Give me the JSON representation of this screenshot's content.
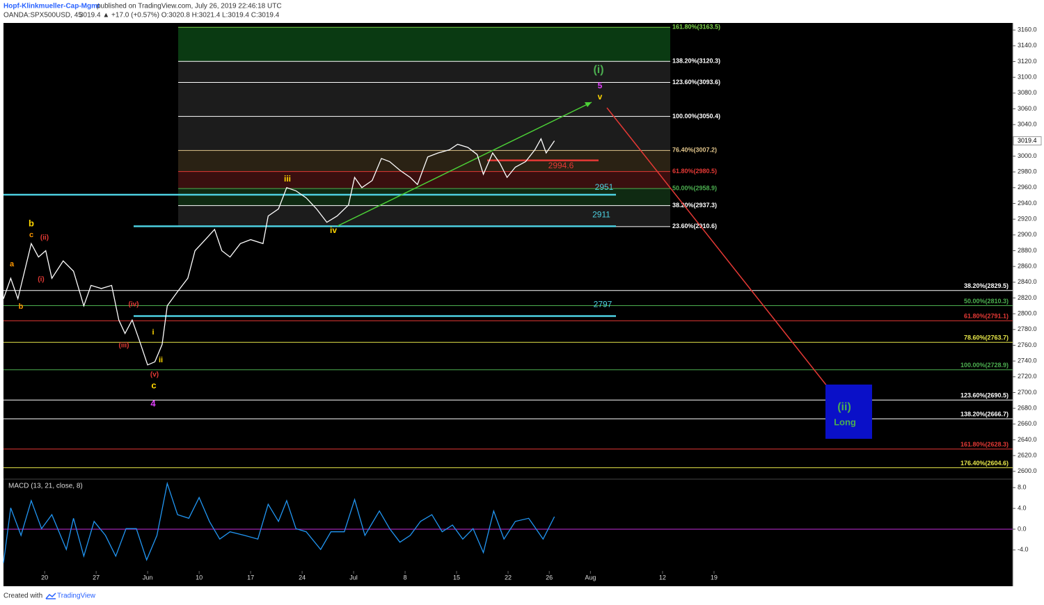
{
  "header": {
    "author": "Hopf-Klinkmueller-Cap-Mgmt",
    "published": "published on TradingView.com, July 26, 2019 22:46:18 UTC",
    "symbol": "OANDA:SPX500USD, 45",
    "quote": "3019.4 ▲ +17.0 (+0.57%) O:3020.8 H:3021.4 L:3019.4 C:3019.4"
  },
  "footer": {
    "created": "Created with",
    "brand": "TradingView"
  },
  "chart_data": [
    {
      "type": "line",
      "x": [
        1.0,
        1.7,
        2.4,
        3.7,
        4.4,
        5.1,
        5.7,
        6.8,
        7.8,
        8.8,
        9.5,
        10.5,
        11.5,
        12.2,
        12.8,
        13.5,
        14.2,
        15.0,
        15.7,
        16.4,
        16.9,
        17.9,
        18.9,
        19.6,
        20.6,
        21.5,
        22.2,
        23.0,
        24.0,
        25.0,
        26.2,
        26.7,
        27.7,
        28.5,
        29.4,
        30.4,
        31.4,
        32.4,
        33.4,
        34.5,
        35.1,
        35.8,
        36.8,
        37.7,
        38.5,
        39.5,
        40.5,
        41.2,
        42.2,
        43.2,
        44.3,
        45.1,
        46.1,
        47.0,
        47.6,
        48.5,
        49.2,
        49.9,
        50.7,
        51.7,
        52.6,
        53.2,
        53.7,
        54.5
      ],
      "series": [
        {
          "color": "#ffffff",
          "values": [
            2819,
            2845,
            2819,
            2889,
            2872,
            2880,
            2845,
            2867,
            2854,
            2810,
            2836,
            2832,
            2836,
            2792,
            2775,
            2792,
            2766,
            2735,
            2739,
            2761,
            2810,
            2828,
            2845,
            2880,
            2894,
            2907,
            2880,
            2872,
            2889,
            2894,
            2889,
            2924,
            2933,
            2960,
            2956,
            2947,
            2933,
            2916,
            2924,
            2938,
            2973,
            2960,
            2969,
            2997,
            2993,
            2982,
            2973,
            2964,
            2999,
            3004,
            3008,
            3015,
            3011,
            3002,
            2977,
            3004,
            2991,
            2973,
            2986,
            2993,
            3008,
            3022,
            3004,
            3019.4
          ]
        }
      ],
      "xlim": [
        1,
        99
      ],
      "xticks": [
        {
          "value": 5,
          "label": "20"
        },
        {
          "value": 10,
          "label": "27"
        },
        {
          "value": 15,
          "label": "Jun"
        },
        {
          "value": 20,
          "label": "10"
        },
        {
          "value": 25,
          "label": "17"
        },
        {
          "value": 30,
          "label": "24"
        },
        {
          "value": 35,
          "label": "Jul"
        },
        {
          "value": 40,
          "label": "8"
        },
        {
          "value": 45,
          "label": "15"
        },
        {
          "value": 50,
          "label": "22"
        },
        {
          "value": 54,
          "label": "26"
        },
        {
          "value": 58,
          "label": "Aug"
        },
        {
          "value": 65,
          "label": "12"
        },
        {
          "value": 70,
          "label": "19"
        }
      ],
      "ylim": [
        2591,
        3169
      ],
      "yticks": [
        {
          "value": 2600,
          "label": "2600.0"
        },
        {
          "value": 2620,
          "label": "2620.0"
        },
        {
          "value": 2640,
          "label": "2640.0"
        },
        {
          "value": 2660,
          "label": "2660.0"
        },
        {
          "value": 2680,
          "label": "2680.0"
        },
        {
          "value": 2700,
          "label": "2700.0"
        },
        {
          "value": 2720,
          "label": "2720.0"
        },
        {
          "value": 2740,
          "label": "2740.0"
        },
        {
          "value": 2760,
          "label": "2760.0"
        },
        {
          "value": 2780,
          "label": "2780.0"
        },
        {
          "value": 2800,
          "label": "2800.0"
        },
        {
          "value": 2820,
          "label": "2820.0"
        },
        {
          "value": 2840,
          "label": "2840.0"
        },
        {
          "value": 2860,
          "label": "2860.0"
        },
        {
          "value": 2880,
          "label": "2880.0"
        },
        {
          "value": 2900,
          "label": "2900.0"
        },
        {
          "value": 2920,
          "label": "2920.0"
        },
        {
          "value": 2940,
          "label": "2940.0"
        },
        {
          "value": 2960,
          "label": "2960.0"
        },
        {
          "value": 2980,
          "label": "2980.0"
        },
        {
          "value": 3000,
          "label": "3000.0"
        },
        {
          "value": 3020,
          "label": "3020.0"
        },
        {
          "value": 3040,
          "label": "3040.0"
        },
        {
          "value": 3060,
          "label": "3060.0"
        },
        {
          "value": 3080,
          "label": "3080.0"
        },
        {
          "value": 3100,
          "label": "3100.0"
        },
        {
          "value": 3120,
          "label": "3120.0"
        },
        {
          "value": 3140,
          "label": "3140.0"
        },
        {
          "value": 3160,
          "label": "3160.0"
        }
      ],
      "fib_upper": [
        {
          "value": 3163.5,
          "label": "161.80%(3163.5)",
          "color": "#7cd34a"
        },
        {
          "value": 3120.3,
          "label": "138.20%(3120.3)",
          "color": "#ffffff"
        },
        {
          "value": 3093.6,
          "label": "123.60%(3093.6)",
          "color": "#ffffff"
        },
        {
          "value": 3050.4,
          "label": "100.00%(3050.4)",
          "color": "#ffffff"
        },
        {
          "value": 3007.2,
          "label": "76.40%(3007.2)",
          "color": "#e0c48a"
        },
        {
          "value": 2980.5,
          "label": "61.80%(2980.5)",
          "color": "#e53935"
        },
        {
          "value": 2958.9,
          "label": "50.00%(2958.9)",
          "color": "#4caf50"
        },
        {
          "value": 2937.3,
          "label": "38.20%(2937.3)",
          "color": "#ffffff"
        },
        {
          "value": 2910.6,
          "label": "23.60%(2910.6)",
          "color": "#ffffff"
        }
      ],
      "fib_lower": [
        {
          "value": 2829.5,
          "label": "38.20%(2829.5)",
          "color": "#ffffff"
        },
        {
          "value": 2810.3,
          "label": "50.00%(2810.3)",
          "color": "#4caf50"
        },
        {
          "value": 2791.1,
          "label": "61.80%(2791.1)",
          "color": "#e53935"
        },
        {
          "value": 2763.7,
          "label": "78.60%(2763.7)",
          "color": "#e8e84a"
        },
        {
          "value": 2728.9,
          "label": "100.00%(2728.9)",
          "color": "#4caf50"
        },
        {
          "value": 2690.5,
          "label": "123.60%(2690.5)",
          "color": "#ffffff"
        },
        {
          "value": 2666.7,
          "label": "138.20%(2666.7)",
          "color": "#ffffff"
        },
        {
          "value": 2628.3,
          "label": "161.80%(2628.3)",
          "color": "#e53935"
        },
        {
          "value": 2604.6,
          "label": "176.40%(2604.6)",
          "color": "#e8e84a"
        }
      ],
      "markers": [
        {
          "value": 2951,
          "color": "#4dd0e1"
        },
        {
          "value": 2911,
          "color": "#4dd0e1"
        },
        {
          "value": 2797,
          "color": "#4dd0e1"
        },
        {
          "value": 2994.6,
          "color": "#e53935"
        }
      ],
      "annotations": [
        {
          "text": "(i)",
          "color": "#4caf50"
        },
        {
          "text": "5",
          "color": "#e040fb"
        },
        {
          "text": "v",
          "color": "#ffd600"
        },
        {
          "text": "iii",
          "color": "#ffd600"
        },
        {
          "text": "iv",
          "color": "#ffd600"
        },
        {
          "text": "b",
          "color": "#ffd600"
        },
        {
          "text": "c",
          "color": "#ff9800"
        },
        {
          "text": "(ii)",
          "color": "#e53935"
        },
        {
          "text": "a",
          "color": "#ff9800"
        },
        {
          "text": "(i)",
          "color": "#e53935"
        },
        {
          "text": "b",
          "color": "#ff9800"
        },
        {
          "text": "(iv)",
          "color": "#e53935"
        },
        {
          "text": "(iii)",
          "color": "#e53935"
        },
        {
          "text": "i",
          "color": "#ffd600"
        },
        {
          "text": "ii",
          "color": "#ffd600"
        },
        {
          "text": "(v)",
          "color": "#e53935"
        },
        {
          "text": "c",
          "color": "#ffd600"
        },
        {
          "text": "4",
          "color": "#e040fb"
        },
        {
          "text": "(ii)",
          "color": "#4caf50"
        },
        {
          "text": "Long",
          "color": "#4caf50"
        }
      ]
    },
    {
      "type": "line",
      "title": "MACD (13, 21, close, 8)",
      "x": [
        1.0,
        1.7,
        2.7,
        3.7,
        4.7,
        5.7,
        7.1,
        7.8,
        8.8,
        9.8,
        10.9,
        11.9,
        12.9,
        13.9,
        14.9,
        15.9,
        16.9,
        17.9,
        19.0,
        20.0,
        21.0,
        22.0,
        23.0,
        24.4,
        25.7,
        26.7,
        27.7,
        28.5,
        29.4,
        30.4,
        31.8,
        32.8,
        34.1,
        35.1,
        36.1,
        37.5,
        38.5,
        39.5,
        40.5,
        41.5,
        42.6,
        43.6,
        44.6,
        45.6,
        46.6,
        47.6,
        48.6,
        49.6,
        50.7,
        52.0,
        53.4,
        54.5
      ],
      "series": [
        {
          "color": "#2196f3",
          "values": [
            -6.5,
            4.1,
            -1.2,
            5.5,
            0.1,
            2.8,
            -3.9,
            2.1,
            -5.2,
            1.5,
            -1.2,
            -5.2,
            0.1,
            0.1,
            -5.9,
            -1.2,
            8.8,
            2.8,
            2.1,
            6.1,
            1.5,
            -1.9,
            -0.5,
            -1.2,
            -1.9,
            4.8,
            1.5,
            5.5,
            0.1,
            -0.5,
            -3.9,
            -0.5,
            -0.5,
            5.7,
            -1.2,
            3.5,
            0.1,
            -2.5,
            -1.2,
            1.5,
            2.8,
            -0.5,
            0.8,
            -1.9,
            0.1,
            -4.5,
            3.5,
            -1.9,
            1.5,
            2.1,
            -1.9,
            2.4
          ]
        }
      ],
      "xlim": [
        1,
        99
      ],
      "ylim": [
        -7.9,
        9.5
      ],
      "yticks": [
        {
          "value": 8,
          "label": "8.0"
        },
        {
          "value": 4,
          "label": "4.0"
        },
        {
          "value": 0,
          "label": "0.0"
        },
        {
          "value": -4,
          "label": "-4.0"
        }
      ],
      "zero_line_color": "#9c27b0"
    }
  ]
}
